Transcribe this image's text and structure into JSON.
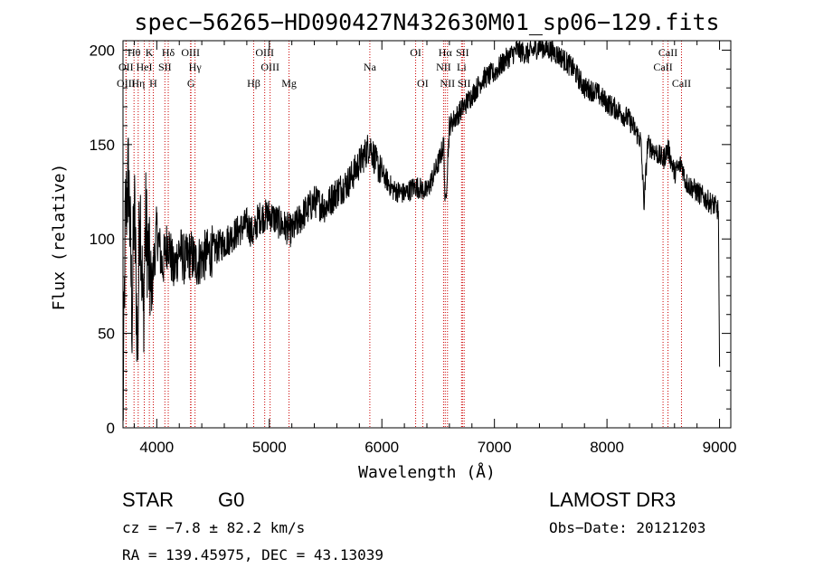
{
  "chart_data": {
    "type": "line",
    "title": "spec−56265−HD090427N432630M01_sp06−129.fits",
    "xlabel": "Wavelength (Å)",
    "ylabel": "Flux (relative)",
    "xlim": [
      3700,
      9100
    ],
    "ylim": [
      0,
      205
    ],
    "x_ticks": [
      4000,
      5000,
      6000,
      7000,
      8000,
      9000
    ],
    "y_ticks": [
      0,
      50,
      100,
      150,
      200
    ],
    "series": [
      {
        "name": "flux",
        "x": [
          3700,
          3720,
          3750,
          3780,
          3800,
          3830,
          3850,
          3880,
          3900,
          3950,
          4000,
          4050,
          4100,
          4150,
          4200,
          4250,
          4300,
          4350,
          4400,
          4500,
          4600,
          4700,
          4800,
          4861,
          4900,
          5000,
          5100,
          5200,
          5300,
          5400,
          5500,
          5600,
          5700,
          5800,
          5850,
          5893,
          5950,
          6000,
          6100,
          6200,
          6300,
          6400,
          6500,
          6550,
          6563,
          6600,
          6700,
          6800,
          6900,
          7000,
          7100,
          7200,
          7300,
          7400,
          7500,
          7600,
          7700,
          7800,
          7900,
          8000,
          8100,
          8200,
          8300,
          8330,
          8360,
          8400,
          8500,
          8542,
          8600,
          8662,
          8700,
          8800,
          8900,
          8950,
          8990,
          9000
        ],
        "y": [
          2,
          110,
          135,
          60,
          118,
          40,
          125,
          55,
          110,
          70,
          105,
          85,
          100,
          82,
          95,
          88,
          92,
          87,
          90,
          94,
          98,
          103,
          108,
          102,
          111,
          113,
          108,
          104,
          113,
          120,
          117,
          125,
          130,
          140,
          145,
          150,
          140,
          135,
          126,
          124,
          128,
          125,
          140,
          150,
          115,
          160,
          168,
          176,
          185,
          188,
          195,
          200,
          198,
          202,
          200,
          196,
          190,
          180,
          178,
          172,
          168,
          163,
          152,
          118,
          150,
          148,
          142,
          148,
          135,
          140,
          130,
          125,
          120,
          118,
          115,
          30
        ]
      }
    ],
    "lines": [
      {
        "name": "Hθ",
        "x": 3798,
        "row": 1
      },
      {
        "name": "OII",
        "x": 3727,
        "row": 2
      },
      {
        "name": "OIII",
        "x": 3727,
        "row": 3
      },
      {
        "name": "Hη",
        "x": 3835,
        "row": 3
      },
      {
        "name": "HeI",
        "x": 3889,
        "row": 2
      },
      {
        "name": "K",
        "x": 3934,
        "row": 1
      },
      {
        "name": "H",
        "x": 3969,
        "row": 3
      },
      {
        "name": "SII",
        "x": 4072,
        "row": 2
      },
      {
        "name": "Hδ",
        "x": 4102,
        "row": 1
      },
      {
        "name": "OIII",
        "x": 4300,
        "row": 1
      },
      {
        "name": "Hγ",
        "x": 4340,
        "row": 2
      },
      {
        "name": "G",
        "x": 4304,
        "row": 3
      },
      {
        "name": "Hβ",
        "x": 4861,
        "row": 3
      },
      {
        "name": "OIII",
        "x": 4959,
        "row": 1
      },
      {
        "name": "OIII",
        "x": 5007,
        "row": 2
      },
      {
        "name": "Mg",
        "x": 5175,
        "row": 3
      },
      {
        "name": "Na",
        "x": 5893,
        "row": 2
      },
      {
        "name": "OI",
        "x": 6300,
        "row": 1
      },
      {
        "name": "OI",
        "x": 6363,
        "row": 3
      },
      {
        "name": "Hα",
        "x": 6563,
        "row": 1
      },
      {
        "name": "NII",
        "x": 6548,
        "row": 2
      },
      {
        "name": "NII",
        "x": 6583,
        "row": 3
      },
      {
        "name": "SII",
        "x": 6716,
        "row": 1
      },
      {
        "name": "Li",
        "x": 6708,
        "row": 2
      },
      {
        "name": "SII",
        "x": 6731,
        "row": 3
      },
      {
        "name": "CaII",
        "x": 8542,
        "row": 1
      },
      {
        "name": "CaII",
        "x": 8498,
        "row": 2
      },
      {
        "name": "CaII",
        "x": 8662,
        "row": 3
      }
    ]
  },
  "info": {
    "object_class": "STAR",
    "subclass": "G0",
    "survey": "LAMOST DR3",
    "cz": "cz = −7.8 ± 82.2 km/s",
    "obs_date": "Obs−Date: 20121203",
    "coords": "RA = 139.45975, DEC =  43.13039"
  },
  "colors": {
    "line_marker": "#cc0000",
    "spectrum": "#000000"
  }
}
